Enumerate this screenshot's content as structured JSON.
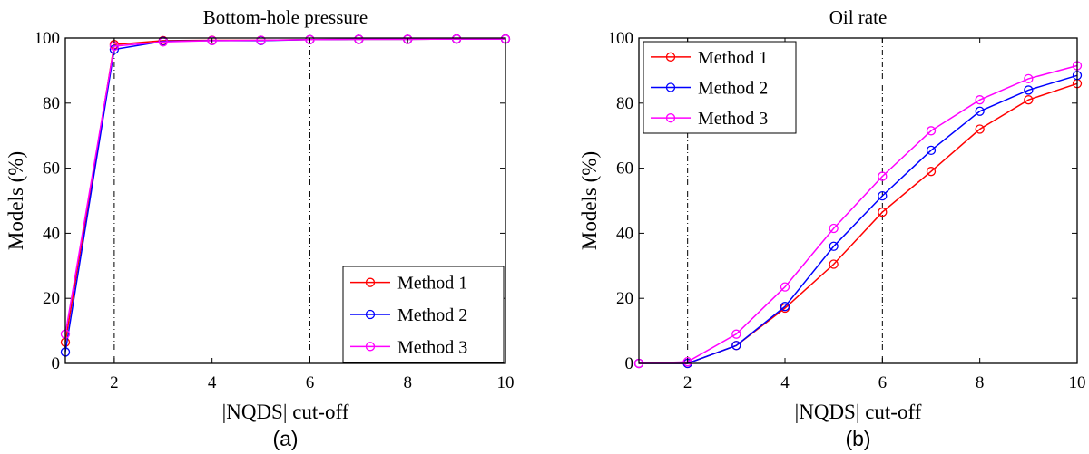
{
  "chart_data": [
    {
      "type": "line",
      "title": "Bottom-hole pressure",
      "xlabel": "|NQDS| cut-off",
      "ylabel": "Models (%)",
      "panel_label": "(a)",
      "xlim": [
        1,
        10
      ],
      "ylim": [
        0,
        100
      ],
      "xticks": [
        "2",
        "4",
        "6",
        "8",
        "10"
      ],
      "yticks": [
        "0",
        "20",
        "40",
        "60",
        "80",
        "100"
      ],
      "vlines": [
        2,
        6
      ],
      "legend": "bottom-right",
      "x": [
        1,
        2,
        3,
        4,
        5,
        6,
        7,
        8,
        9,
        10
      ],
      "series": [
        {
          "name": "Method 1",
          "color": "#ff0000",
          "values": [
            6.5,
            98,
            99.2,
            99.3,
            99.3,
            99.5,
            99.6,
            99.6,
            99.7,
            99.7
          ]
        },
        {
          "name": "Method 2",
          "color": "#0000ff",
          "values": [
            3.5,
            96.5,
            99.0,
            99.2,
            99.2,
            99.5,
            99.6,
            99.6,
            99.7,
            99.7
          ]
        },
        {
          "name": "Method 3",
          "color": "#ff00ff",
          "values": [
            9,
            97.5,
            98.8,
            99.2,
            99.3,
            99.5,
            99.6,
            99.6,
            99.7,
            99.7
          ]
        }
      ]
    },
    {
      "type": "line",
      "title": "Oil rate",
      "xlabel": "|NQDS| cut-off",
      "ylabel": "Models (%)",
      "panel_label": "(b)",
      "xlim": [
        1,
        10
      ],
      "ylim": [
        0,
        100
      ],
      "xticks": [
        "2",
        "4",
        "6",
        "8",
        "10"
      ],
      "yticks": [
        "0",
        "20",
        "40",
        "60",
        "80",
        "100"
      ],
      "vlines": [
        2,
        6
      ],
      "legend": "top-left",
      "x": [
        1,
        2,
        3,
        4,
        5,
        6,
        7,
        8,
        9,
        10
      ],
      "series": [
        {
          "name": "Method 1",
          "color": "#ff0000",
          "values": [
            0,
            0,
            5.5,
            17,
            30.5,
            46.5,
            59,
            72,
            81,
            86
          ]
        },
        {
          "name": "Method 2",
          "color": "#0000ff",
          "values": [
            0,
            0,
            5.5,
            17.5,
            36,
            51.5,
            65.5,
            77.5,
            84,
            88.5
          ]
        },
        {
          "name": "Method 3",
          "color": "#ff00ff",
          "values": [
            0,
            0.5,
            9,
            23.5,
            41.5,
            57.5,
            71.5,
            81,
            87.5,
            91.5
          ]
        }
      ]
    }
  ]
}
